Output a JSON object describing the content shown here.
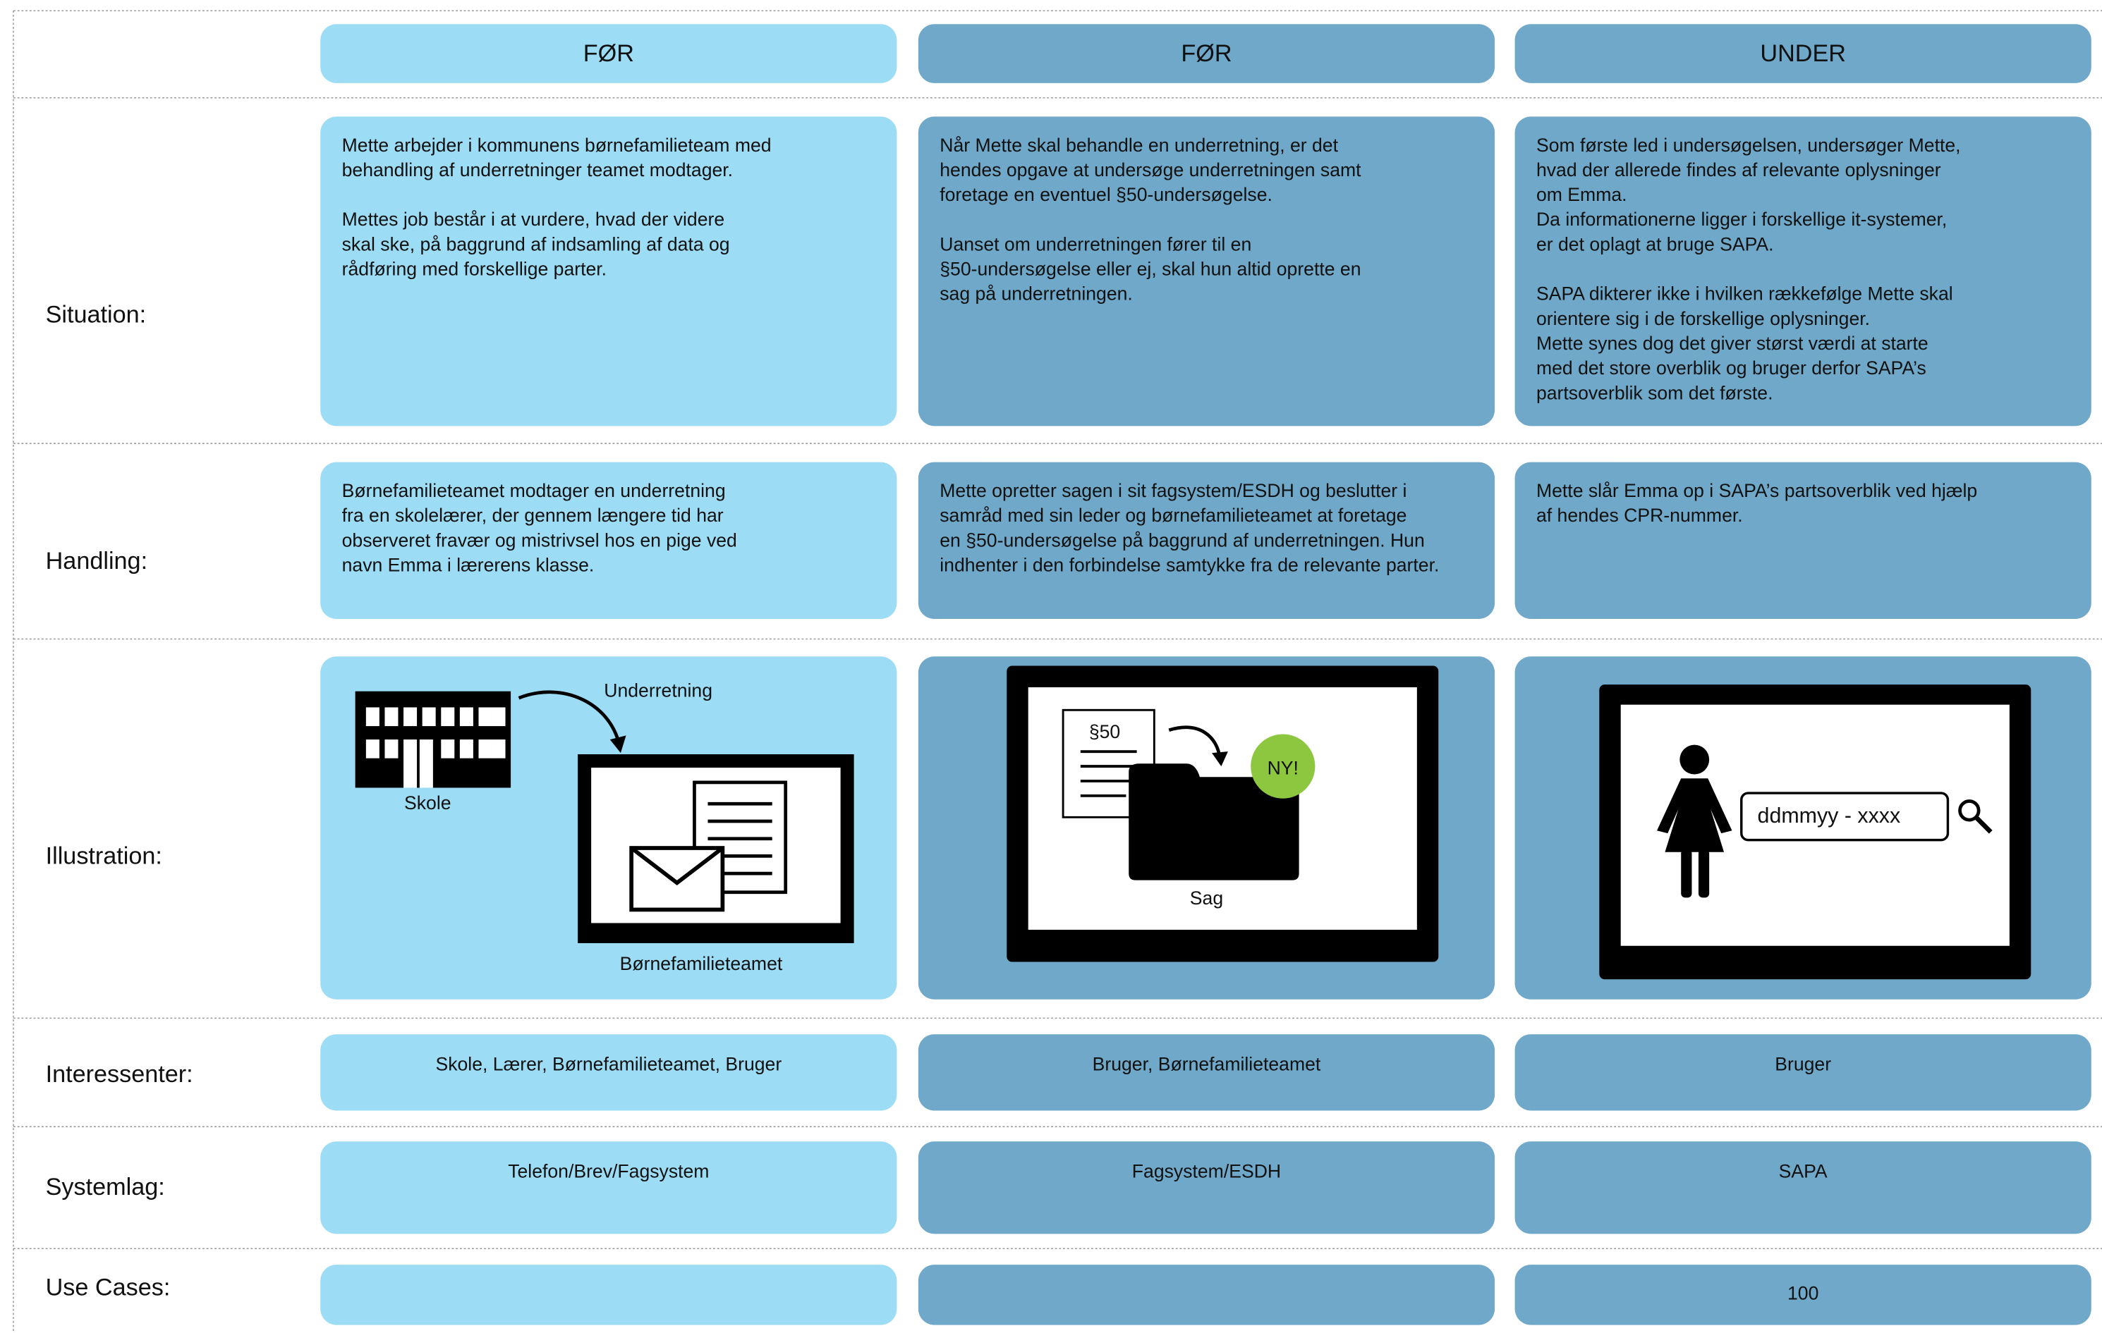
{
  "headers": [
    "FØR",
    "FØR",
    "UNDER"
  ],
  "rows": [
    {
      "label": "Situation:",
      "cells": [
        [
          [
            "Mette arbejder i kommunens børnefamilieteam med",
            "behandling af underretninger teamet modtager."
          ],
          [
            "Mettes job består i at vurdere, hvad der videre",
            "skal ske, på baggrund af indsamling af data og",
            "rådføring med forskellige parter."
          ]
        ],
        [
          [
            "Når Mette skal behandle en underretning, er det",
            "hendes opgave at undersøge underretningen samt",
            "foretage en eventuel §50-undersøgelse."
          ],
          [
            "Uanset om underretningen fører til en",
            "§50-undersøgelse eller ej, skal hun altid oprette en",
            "sag på underretningen."
          ]
        ],
        [
          [
            "Som første led i undersøgelsen, undersøger Mette,",
            "hvad der allerede findes af relevante oplysninger",
            "om Emma.",
            "Da informationerne ligger i forskellige it-systemer,",
            "er det oplagt at bruge SAPA."
          ],
          [
            "SAPA dikterer ikke i hvilken rækkefølge Mette skal",
            "orientere sig i de forskellige oplysninger.",
            "Mette synes dog det giver størst værdi at starte",
            "med det store overblik og bruger derfor SAPA’s",
            "partsoverblik som det første."
          ]
        ]
      ]
    },
    {
      "label": "Handling:",
      "cells": [
        [
          [
            "Børnefamilieteamet modtager en underretning",
            "fra en skolelærer, der gennem længere tid har",
            "observeret fravær og mistrivsel hos en pige ved",
            "navn Emma i lærerens klasse."
          ]
        ],
        [
          [
            "Mette opretter sagen i sit fagsystem/ESDH og beslutter i",
            "samråd med sin leder og børnefamilieteamet at foretage",
            "en §50-undersøgelse på baggrund af underretningen. Hun",
            "indhenter i den forbindelse samtykke fra de relevante parter."
          ]
        ],
        [
          [
            "Mette slår Emma op i SAPA’s partsoverblik ved hjælp",
            "af hendes CPR-nummer."
          ]
        ]
      ]
    },
    {
      "label": "Illustration:"
    },
    {
      "label": "Interessenter:",
      "texts": [
        "Skole, Lærer, Børnefamilieteamet, Bruger",
        "Bruger, Børnefamilieteamet",
        "Bruger"
      ]
    },
    {
      "label": "Systemlag:",
      "texts": [
        "Telefon/Brev/Fagsystem",
        "Fagsystem/ESDH",
        "SAPA"
      ]
    },
    {
      "label": "Use Cases:",
      "under": 100
    }
  ],
  "illustrations": [
    {
      "arrow": "Underretning",
      "sender": "Skole",
      "receiver": "Børnefamilieteamet"
    },
    {
      "document": "§50",
      "badge": "NY!",
      "folder": "Sag"
    },
    {
      "input": "ddmmyy - xxxx"
    }
  ]
}
